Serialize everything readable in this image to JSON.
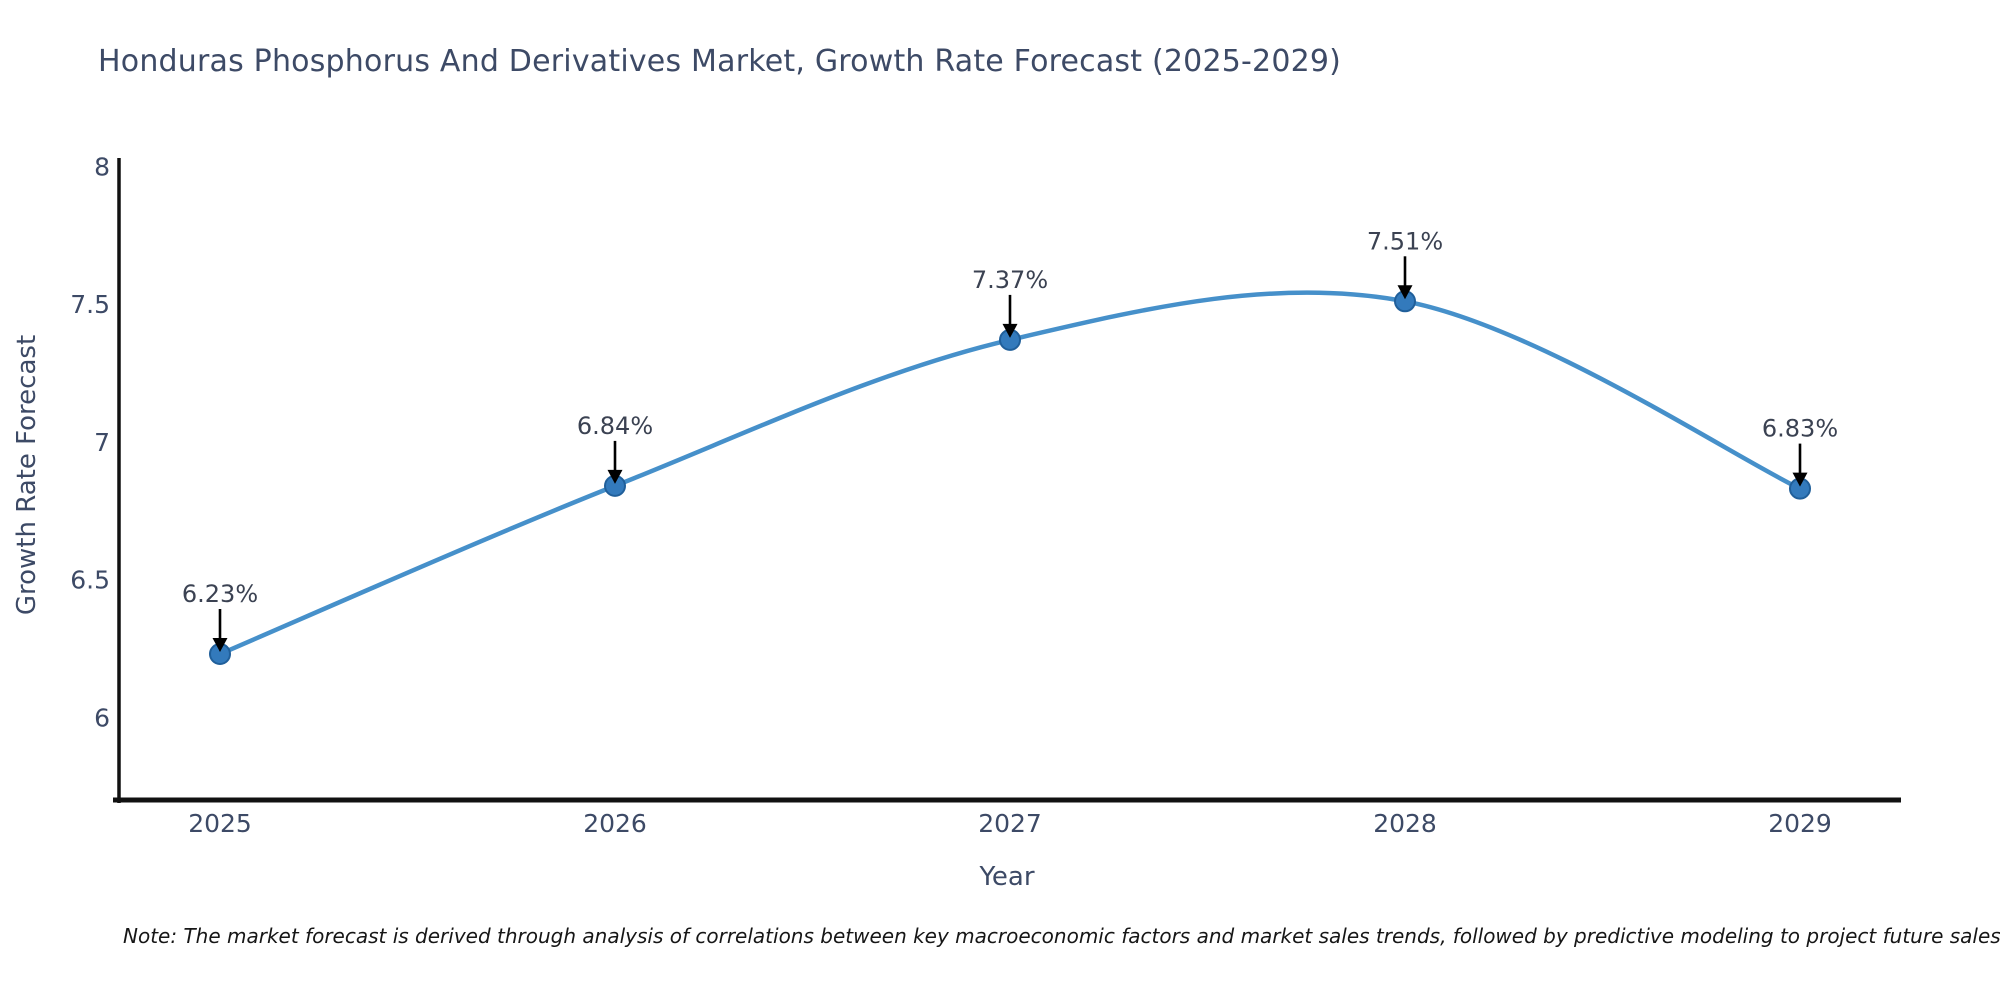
{
  "chart_data": {
    "type": "line",
    "title": "Honduras Phosphorus And Derivatives Market, Growth Rate Forecast (2025-2029)",
    "xlabel": "Year",
    "ylabel": "Growth Rate Forecast",
    "categories": [
      "2025",
      "2026",
      "2027",
      "2028",
      "2029"
    ],
    "series": [
      {
        "name": "Growth Rate Forecast",
        "values": [
          6.23,
          6.84,
          7.37,
          7.51,
          6.83
        ],
        "point_labels": [
          "6.23%",
          "6.84%",
          "7.37%",
          "7.51%",
          "6.83%"
        ]
      }
    ],
    "yticks": [
      8,
      7.5,
      7,
      6.5,
      6
    ],
    "ylim": [
      5.7,
      8.03
    ],
    "grid": false,
    "legend": "none",
    "note": "Note: The market forecast is derived through analysis of correlations between key macroeconomic factors and market sales trends, followed by predictive modeling to project future sales",
    "colors": {
      "line": "#4690ca",
      "marker": "#337abc",
      "marker_edge": "#205f9a",
      "axis": "#111111",
      "text": "#3d4a66",
      "annotation": "#3b4252",
      "arrow": "#000000"
    }
  }
}
